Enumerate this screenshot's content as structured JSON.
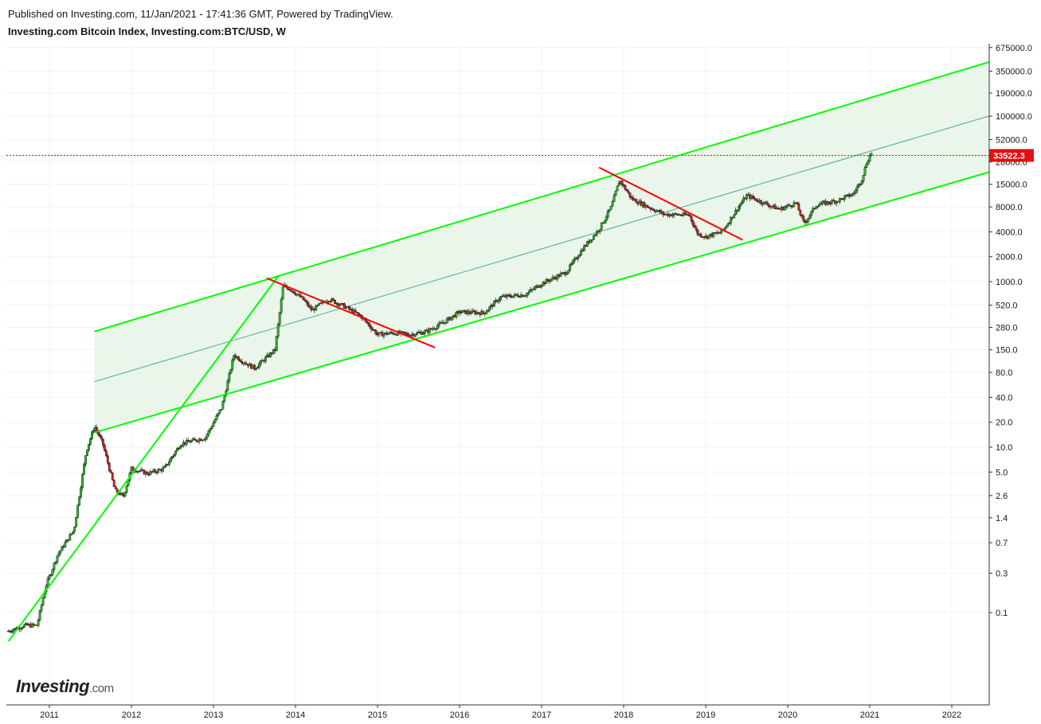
{
  "header": {
    "published": "Published on Investing.com, 11/Jan/2021 - 17:41:36 GMT, Powered by TradingView.",
    "symbol": "Investing.com Bitcoin Index, Investing.com:BTC/USD, W"
  },
  "logo": {
    "brand": "Investing",
    "suffix": ".com"
  },
  "chart_data": {
    "type": "candlestick",
    "scale": "log",
    "grid": true,
    "current_price_label": "33522.3",
    "current_price": 33522.3,
    "y_ticks": [
      {
        "label": "675000.0",
        "value": 675000
      },
      {
        "label": "350000.0",
        "value": 350000
      },
      {
        "label": "190000.0",
        "value": 190000
      },
      {
        "label": "100000.0",
        "value": 100000
      },
      {
        "label": "52000.0",
        "value": 52000
      },
      {
        "label": "28000.0",
        "value": 28000
      },
      {
        "label": "15000.0",
        "value": 15000
      },
      {
        "label": "8000.0",
        "value": 8000
      },
      {
        "label": "4000.0",
        "value": 4000
      },
      {
        "label": "2000.0",
        "value": 2000
      },
      {
        "label": "1000.0",
        "value": 1000
      },
      {
        "label": "520.0",
        "value": 520
      },
      {
        "label": "280.0",
        "value": 280
      },
      {
        "label": "150.0",
        "value": 150
      },
      {
        "label": "80.0",
        "value": 80
      },
      {
        "label": "40.0",
        "value": 40
      },
      {
        "label": "20.0",
        "value": 20
      },
      {
        "label": "10.0",
        "value": 10
      },
      {
        "label": "5.0",
        "value": 5
      },
      {
        "label": "2.6",
        "value": 2.6
      },
      {
        "label": "1.4",
        "value": 1.4
      },
      {
        "label": "0.7",
        "value": 0.7
      },
      {
        "label": "0.3",
        "value": 0.3
      },
      {
        "label": "0.1",
        "value": 0.1
      }
    ],
    "x_ticks": [
      {
        "label": "2011",
        "value": 2011.0
      },
      {
        "label": "2012",
        "value": 2012.0
      },
      {
        "label": "2013",
        "value": 2013.0
      },
      {
        "label": "2014",
        "value": 2014.0
      },
      {
        "label": "2015",
        "value": 2015.0
      },
      {
        "label": "2016",
        "value": 2016.0
      },
      {
        "label": "2017",
        "value": 2017.0
      },
      {
        "label": "2018",
        "value": 2018.0
      },
      {
        "label": "2019",
        "value": 2019.0
      },
      {
        "label": "2020",
        "value": 2020.0
      },
      {
        "label": "2021",
        "value": 2021.0
      },
      {
        "label": "2022",
        "value": 2022.0
      }
    ],
    "price_path": [
      [
        2010.5,
        0.06
      ],
      [
        2010.7,
        0.07
      ],
      [
        2010.85,
        0.07
      ],
      [
        2010.95,
        0.2
      ],
      [
        2011.1,
        0.5
      ],
      [
        2011.3,
        1.0
      ],
      [
        2011.45,
        9
      ],
      [
        2011.55,
        18
      ],
      [
        2011.65,
        11
      ],
      [
        2011.8,
        3.0
      ],
      [
        2011.9,
        2.5
      ],
      [
        2012.0,
        5.5
      ],
      [
        2012.2,
        4.8
      ],
      [
        2012.4,
        5.5
      ],
      [
        2012.6,
        11
      ],
      [
        2012.9,
        13
      ],
      [
        2013.1,
        30
      ],
      [
        2013.25,
        130
      ],
      [
        2013.35,
        110
      ],
      [
        2013.5,
        90
      ],
      [
        2013.75,
        150
      ],
      [
        2013.85,
        900
      ],
      [
        2013.95,
        800
      ],
      [
        2014.1,
        600
      ],
      [
        2014.2,
        450
      ],
      [
        2014.4,
        620
      ],
      [
        2014.6,
        500
      ],
      [
        2014.8,
        380
      ],
      [
        2015.0,
        230
      ],
      [
        2015.2,
        240
      ],
      [
        2015.4,
        230
      ],
      [
        2015.6,
        250
      ],
      [
        2015.8,
        320
      ],
      [
        2016.0,
        430
      ],
      [
        2016.3,
        420
      ],
      [
        2016.5,
        650
      ],
      [
        2016.8,
        700
      ],
      [
        2017.0,
        950
      ],
      [
        2017.3,
        1300
      ],
      [
        2017.5,
        2500
      ],
      [
        2017.7,
        4300
      ],
      [
        2017.85,
        8000
      ],
      [
        2017.95,
        17000
      ],
      [
        2018.1,
        10000
      ],
      [
        2018.3,
        8000
      ],
      [
        2018.5,
        6500
      ],
      [
        2018.8,
        6400
      ],
      [
        2018.9,
        3800
      ],
      [
        2019.0,
        3500
      ],
      [
        2019.2,
        4000
      ],
      [
        2019.4,
        8000
      ],
      [
        2019.5,
        11000
      ],
      [
        2019.7,
        9000
      ],
      [
        2019.9,
        7500
      ],
      [
        2020.1,
        9000
      ],
      [
        2020.2,
        5000
      ],
      [
        2020.35,
        8500
      ],
      [
        2020.6,
        9500
      ],
      [
        2020.8,
        11500
      ],
      [
        2020.9,
        17000
      ],
      [
        2020.97,
        29000
      ],
      [
        2021.03,
        38000
      ]
    ],
    "trendlines": [
      {
        "color": "#00ff00",
        "points": [
          [
            2010.5,
            0.045
          ],
          [
            2013.8,
            1200
          ]
        ]
      },
      {
        "color": "#00ff00",
        "points": [
          [
            2011.55,
            250
          ],
          [
            2022.45,
            450000
          ]
        ]
      },
      {
        "color": "#00ff00",
        "points": [
          [
            2011.55,
            15
          ],
          [
            2022.45,
            21000
          ]
        ]
      },
      {
        "color": "#ff0000",
        "points": [
          [
            2013.65,
            1100
          ],
          [
            2015.7,
            160
          ]
        ]
      },
      {
        "color": "#ff0000",
        "points": [
          [
            2017.7,
            24000
          ],
          [
            2019.45,
            3200
          ]
        ]
      }
    ],
    "median_line": {
      "color": "#4aa89a",
      "points": [
        [
          2011.55,
          62
        ],
        [
          2022.45,
          100000
        ]
      ]
    },
    "channel_fill": "#e8f5e8"
  }
}
